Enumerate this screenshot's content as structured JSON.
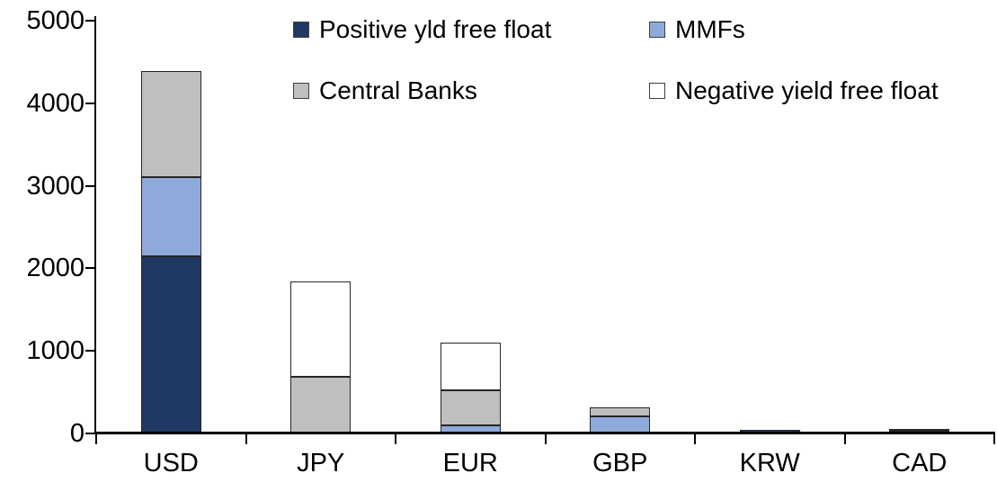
{
  "colors": {
    "positive": "#1F3864",
    "mmfs": "#8EAADB",
    "central_banks": "#BFBFBF",
    "negative": "#FFFFFF",
    "segment_border": "#262626",
    "axis": "#000000"
  },
  "chart_data": {
    "type": "bar",
    "stacked": true,
    "title": "",
    "xlabel": "",
    "ylabel": "",
    "categories": [
      "USD",
      "JPY",
      "EUR",
      "GBP",
      "KRW",
      "CAD"
    ],
    "series": [
      {
        "name": "Positive yld free float",
        "color_key": "positive",
        "values": [
          2150,
          0,
          0,
          0,
          40,
          30
        ]
      },
      {
        "name": "MMFs",
        "color_key": "mmfs",
        "values": [
          950,
          0,
          100,
          210,
          0,
          0
        ]
      },
      {
        "name": "Central Banks",
        "color_key": "central_banks",
        "values": [
          1290,
          690,
          420,
          110,
          0,
          30
        ]
      },
      {
        "name": "Negative yield free float",
        "color_key": "negative",
        "values": [
          0,
          1150,
          580,
          0,
          0,
          0
        ]
      }
    ],
    "ylim": [
      0,
      5000
    ],
    "yticks": [
      0,
      1000,
      2000,
      3000,
      4000,
      5000
    ],
    "grid": false,
    "legend_position": "top"
  },
  "legend": {
    "items": [
      {
        "label": "Positive yld free float",
        "color_key": "positive"
      },
      {
        "label": "MMFs",
        "color_key": "mmfs"
      },
      {
        "label": "Central Banks",
        "color_key": "central_banks"
      },
      {
        "label": "Negative yield free float",
        "color_key": "negative"
      }
    ]
  }
}
